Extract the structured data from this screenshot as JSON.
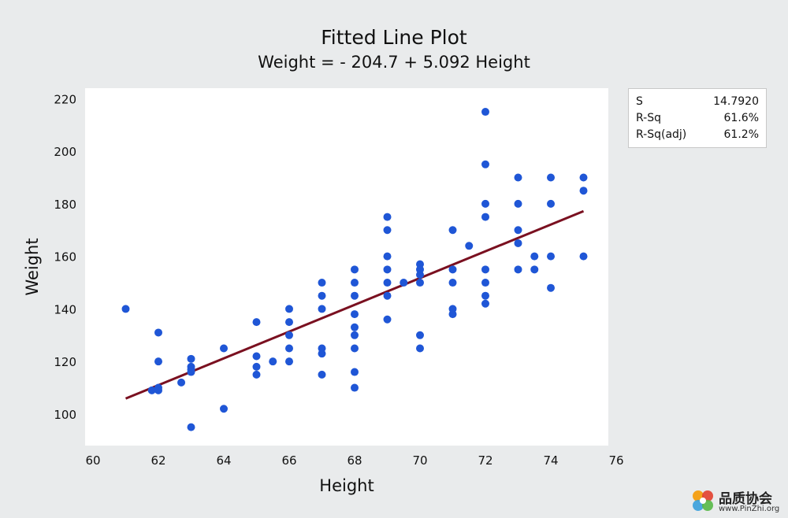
{
  "chart_data": {
    "type": "scatter",
    "title": "Fitted Line Plot",
    "subtitle": "Weight = - 204.7 + 5.092 Height",
    "xlabel": "Height",
    "ylabel": "Weight",
    "xlim": [
      60,
      76
    ],
    "ylim": [
      88,
      224
    ],
    "xticks": [
      60,
      62,
      64,
      66,
      68,
      70,
      72,
      74,
      76
    ],
    "yticks": [
      100,
      120,
      140,
      160,
      180,
      200,
      220
    ],
    "grid": false,
    "fit": {
      "intercept": -204.7,
      "slope": 5.092,
      "x_range": [
        61,
        75
      ],
      "color": "#7a1020"
    },
    "point_color": "#1f56d6",
    "points": [
      [
        61,
        140
      ],
      [
        61.8,
        109
      ],
      [
        62,
        131
      ],
      [
        62,
        120
      ],
      [
        62,
        110
      ],
      [
        62,
        109
      ],
      [
        62.7,
        112
      ],
      [
        63,
        121
      ],
      [
        63,
        118
      ],
      [
        63,
        117
      ],
      [
        63,
        116
      ],
      [
        63,
        95
      ],
      [
        64,
        125
      ],
      [
        64,
        102
      ],
      [
        65,
        135
      ],
      [
        65,
        122
      ],
      [
        65,
        118
      ],
      [
        65,
        115
      ],
      [
        65.5,
        120
      ],
      [
        66,
        140
      ],
      [
        66,
        135
      ],
      [
        66,
        130
      ],
      [
        66,
        125
      ],
      [
        66,
        120
      ],
      [
        67,
        150
      ],
      [
        67,
        145
      ],
      [
        67,
        140
      ],
      [
        67,
        125
      ],
      [
        67,
        123
      ],
      [
        67,
        115
      ],
      [
        68,
        155
      ],
      [
        68,
        150
      ],
      [
        68,
        145
      ],
      [
        68,
        138
      ],
      [
        68,
        133
      ],
      [
        68,
        130
      ],
      [
        68,
        125
      ],
      [
        68,
        116
      ],
      [
        68,
        110
      ],
      [
        69,
        175
      ],
      [
        69,
        170
      ],
      [
        69,
        160
      ],
      [
        69,
        155
      ],
      [
        69,
        150
      ],
      [
        69,
        145
      ],
      [
        69,
        136
      ],
      [
        69.5,
        150
      ],
      [
        70,
        157
      ],
      [
        70,
        155
      ],
      [
        70,
        153
      ],
      [
        70,
        150
      ],
      [
        70,
        130
      ],
      [
        70,
        125
      ],
      [
        71,
        170
      ],
      [
        71,
        155
      ],
      [
        71,
        150
      ],
      [
        71,
        140
      ],
      [
        71,
        138
      ],
      [
        71.5,
        164
      ],
      [
        72,
        215
      ],
      [
        72,
        195
      ],
      [
        72,
        180
      ],
      [
        72,
        175
      ],
      [
        72,
        155
      ],
      [
        72,
        150
      ],
      [
        72,
        145
      ],
      [
        72,
        142
      ],
      [
        73,
        190
      ],
      [
        73,
        180
      ],
      [
        73,
        170
      ],
      [
        73,
        165
      ],
      [
        73,
        155
      ],
      [
        73.5,
        160
      ],
      [
        73.5,
        155
      ],
      [
        74,
        190
      ],
      [
        74,
        180
      ],
      [
        74,
        160
      ],
      [
        74,
        148
      ],
      [
        75,
        190
      ],
      [
        75,
        185
      ],
      [
        75,
        160
      ]
    ],
    "stats": [
      {
        "label": "S",
        "value": "14.7920"
      },
      {
        "label": "R-Sq",
        "value": "61.6%"
      },
      {
        "label": "R-Sq(adj)",
        "value": "61.2%"
      }
    ]
  },
  "watermark": {
    "text": "品质协会",
    "url": "www.PinZhi.org"
  }
}
